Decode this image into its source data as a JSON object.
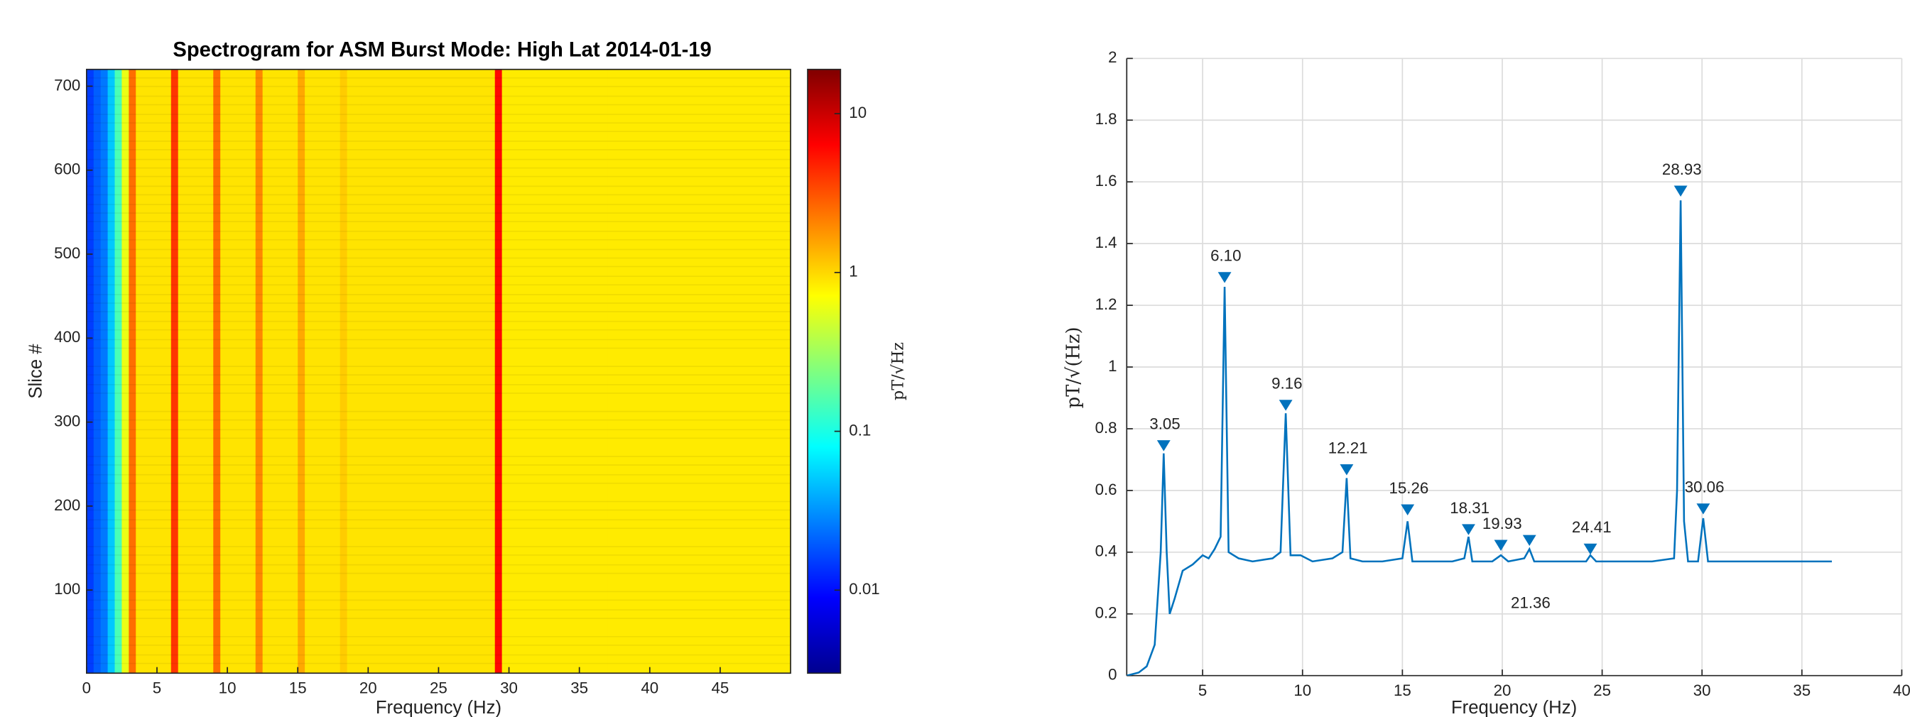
{
  "chart_data": [
    {
      "type": "spectrogram",
      "title": "Spectrogram for ASM Burst Mode: High Lat 2014-01-19",
      "x_label": "Frequency (Hz)",
      "y_label": "Slice #",
      "colorbar_label": "pT/√Hz",
      "xlim": [
        0,
        50
      ],
      "xticks": [
        0,
        5,
        10,
        15,
        20,
        25,
        30,
        35,
        40,
        45
      ],
      "ylim": [
        1,
        720
      ],
      "yticks": [
        100,
        200,
        300,
        400,
        500,
        600,
        700
      ],
      "clim": [
        0.003,
        19
      ],
      "cticks": [
        0.01,
        0.1,
        1,
        10
      ],
      "color_scale": "log",
      "colormap": "jet",
      "x": [
        0.25,
        0.75,
        1.25,
        1.75,
        2.25,
        2.75,
        3.25,
        3.75,
        4.25,
        4.75,
        5.25,
        5.75,
        6.25,
        6.75,
        7.25,
        7.75,
        8.25,
        8.75,
        9.25,
        9.75,
        10.25,
        10.75,
        11.25,
        11.75,
        12.25,
        12.75,
        13.25,
        13.75,
        14.25,
        14.75,
        15.25,
        15.75,
        16.25,
        16.75,
        17.25,
        17.75,
        18.25,
        18.75,
        19.25,
        19.75,
        20.25,
        20.75,
        21.25,
        21.75,
        22.25,
        22.75,
        23.25,
        23.75,
        24.25,
        24.75,
        25.25,
        25.75,
        26.25,
        26.75,
        27.25,
        27.75,
        28.25,
        28.75,
        29.25,
        29.75,
        30.25,
        30.75,
        31.25,
        31.75,
        32.25,
        32.75,
        33.25,
        33.75,
        34.25,
        34.75,
        35.25,
        35.75,
        36.25,
        36.75,
        37.25,
        37.75,
        38.25,
        38.75,
        39.25,
        39.75,
        40.25,
        40.75,
        41.25,
        41.75,
        42.25,
        42.75,
        43.25,
        43.75,
        44.25,
        44.75,
        45.25,
        45.75,
        46.25,
        46.75,
        47.25,
        47.75,
        48.25,
        48.75,
        49.25,
        49.75
      ],
      "values": [
        0.015,
        0.02,
        0.025,
        0.05,
        0.15,
        0.6,
        2.5,
        0.9,
        0.9,
        0.9,
        0.9,
        0.9,
        4,
        0.9,
        0.9,
        0.9,
        0.9,
        0.9,
        2.5,
        0.9,
        0.9,
        0.9,
        0.9,
        0.9,
        2,
        0.9,
        0.9,
        0.9,
        0.9,
        0.9,
        1.5,
        0.9,
        0.9,
        0.9,
        0.9,
        0.9,
        1.1,
        0.9,
        0.9,
        0.9,
        0.9,
        0.9,
        0.9,
        0.9,
        0.9,
        0.9,
        0.9,
        0.9,
        0.9,
        0.9,
        0.9,
        0.9,
        0.9,
        0.9,
        0.9,
        0.9,
        0.9,
        0.9,
        6,
        0.85,
        0.85,
        0.85,
        0.85,
        0.85,
        0.85,
        0.85,
        0.85,
        0.85,
        0.85,
        0.85,
        0.85,
        0.85,
        0.85,
        0.85,
        0.85,
        0.85,
        0.85,
        0.85,
        0.85,
        0.85,
        0.85,
        0.85,
        0.85,
        0.85,
        0.85,
        0.85,
        0.85,
        0.85,
        0.85,
        0.85,
        0.85,
        0.85,
        0.85,
        0.85,
        0.85,
        0.85,
        0.85,
        0.85,
        0.85,
        0.85
      ]
    },
    {
      "type": "line",
      "x_label": "Frequency (Hz)",
      "y_label": "pT/√(Hz)",
      "xlim": [
        1.2,
        40
      ],
      "xticks": [
        5,
        10,
        15,
        20,
        25,
        30,
        35,
        40
      ],
      "ylim": [
        0,
        2
      ],
      "yticks": [
        0,
        0.2,
        0.4,
        0.6,
        0.8,
        1,
        1.2,
        1.4,
        1.6,
        1.8,
        2
      ],
      "grid": true,
      "color": "#0072bd",
      "x": [
        1.2,
        1.8,
        2.2,
        2.6,
        2.9,
        3.05,
        3.2,
        3.35,
        3.6,
        4,
        4.5,
        5,
        5.3,
        5.6,
        5.9,
        6.1,
        6.3,
        6.8,
        7.5,
        8.5,
        8.9,
        9.16,
        9.4,
        9.9,
        10.5,
        11.5,
        12.0,
        12.21,
        12.4,
        13,
        14,
        15.0,
        15.26,
        15.5,
        16.5,
        17.5,
        18.1,
        18.31,
        18.5,
        19.5,
        19.93,
        20.3,
        21.1,
        21.36,
        21.6,
        23,
        24.2,
        24.41,
        24.7,
        26,
        27.5,
        28.6,
        28.75,
        28.93,
        29.1,
        29.3,
        29.8,
        30.06,
        30.3,
        31,
        33,
        35,
        36.5
      ],
      "values": [
        0,
        0.01,
        0.03,
        0.1,
        0.4,
        0.72,
        0.4,
        0.2,
        0.25,
        0.34,
        0.36,
        0.39,
        0.38,
        0.41,
        0.45,
        1.26,
        0.4,
        0.38,
        0.37,
        0.38,
        0.4,
        0.85,
        0.39,
        0.39,
        0.37,
        0.38,
        0.4,
        0.64,
        0.38,
        0.37,
        0.37,
        0.38,
        0.5,
        0.37,
        0.37,
        0.37,
        0.38,
        0.45,
        0.37,
        0.37,
        0.39,
        0.37,
        0.38,
        0.41,
        0.37,
        0.37,
        0.37,
        0.39,
        0.37,
        0.37,
        0.37,
        0.38,
        0.6,
        1.54,
        0.5,
        0.37,
        0.37,
        0.51,
        0.37,
        0.37,
        0.37,
        0.37,
        0.37
      ],
      "peaks": {
        "x": [
          3.05,
          6.1,
          9.16,
          12.21,
          15.26,
          18.31,
          19.93,
          21.36,
          24.41,
          28.93,
          30.06
        ],
        "values": [
          0.745,
          1.29,
          0.876,
          0.667,
          0.537,
          0.473,
          0.422,
          0.438,
          0.41,
          1.57,
          0.54
        ],
        "labels": [
          "3.05",
          "6.10",
          "9.16",
          "12.21",
          "15.26",
          "18.31",
          "19.93",
          "21.36",
          "24.41",
          "28.93",
          "30.06"
        ]
      }
    }
  ]
}
